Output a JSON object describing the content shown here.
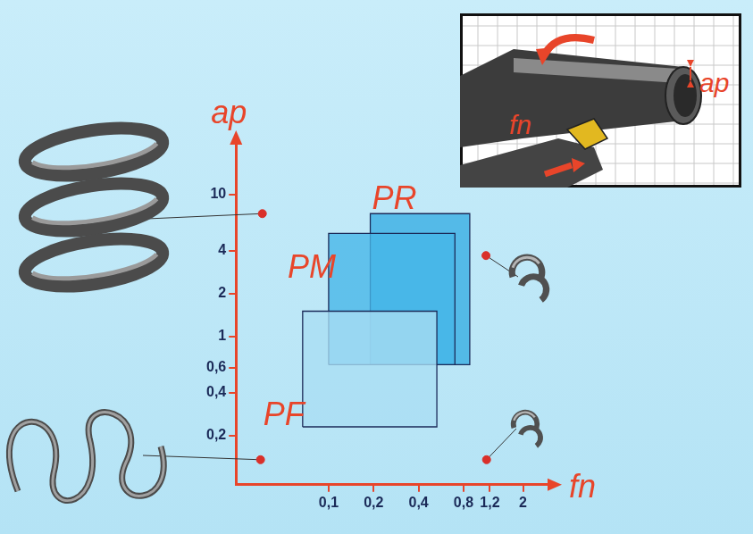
{
  "chart_data": {
    "type": "area",
    "x_label": "fn",
    "y_label": "ap",
    "log": true,
    "grid": false,
    "xlim": [
      0.024,
      3
    ],
    "ylim": [
      0.09,
      23
    ],
    "xticks": [
      {
        "value": 0.1,
        "label": "0,1"
      },
      {
        "value": 0.2,
        "label": "0,2"
      },
      {
        "value": 0.4,
        "label": "0,4"
      },
      {
        "value": 0.8,
        "label": "0,8"
      },
      {
        "value": 1.2,
        "label": "1,2"
      },
      2
    ],
    "yticks": [
      {
        "value": 0.2,
        "label": "0,2"
      },
      {
        "value": 0.4,
        "label": "0,4"
      },
      {
        "value": 0.6,
        "label": "0,6"
      },
      1,
      2,
      4,
      10
    ],
    "series": [
      {
        "name": "PF",
        "color": "#a9def4",
        "x": [
          0.067,
          0.53,
          0.53,
          0.067,
          0.067
        ],
        "values": [
          0.23,
          0.23,
          1.5,
          1.5,
          0.23
        ]
      },
      {
        "name": "PM",
        "color": "#45b6e8",
        "x": [
          0.1,
          0.7,
          0.7,
          0.1,
          0.1
        ],
        "values": [
          0.63,
          0.63,
          5.3,
          5.3,
          0.63
        ]
      },
      {
        "name": "PR",
        "color": "#36ade3",
        "x": [
          0.19,
          0.88,
          0.88,
          0.19,
          0.19
        ],
        "values": [
          0.63,
          0.63,
          7.3,
          7.3,
          0.63
        ]
      }
    ],
    "points": {
      "color": "#d9302a",
      "x": [
        0.036,
        0.035,
        1.13,
        1.14
      ],
      "values": [
        7.3,
        0.135,
        3.7,
        0.135
      ]
    },
    "annotations": [
      "ap",
      "fn"
    ]
  }
}
